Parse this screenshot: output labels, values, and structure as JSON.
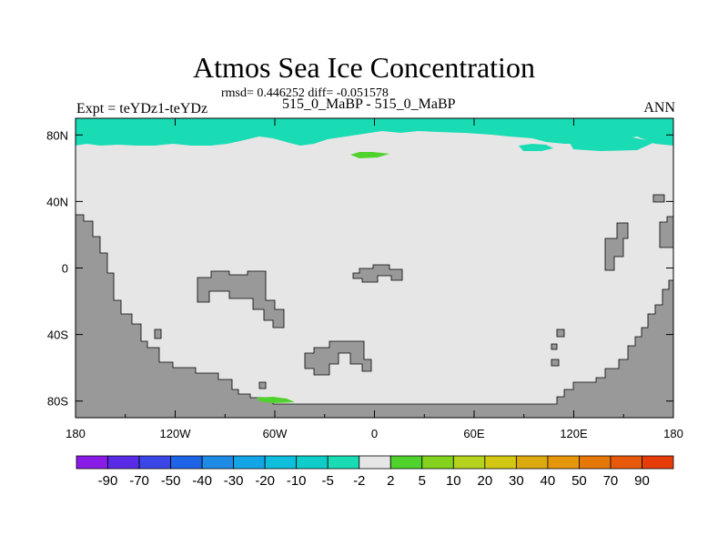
{
  "chart_data": {
    "type": "heatmap",
    "title": "Atmos Sea Ice Concentration",
    "stats": "rmsd= 0.446252 diff= -0.051578",
    "left_label": "Expt = teYDz1-teYDz",
    "center_label": "515_0_MaBP - 515_0_MaBP",
    "right_label": "ANN",
    "x_range": [
      -180,
      180
    ],
    "y_range": [
      -90,
      90
    ],
    "x_ticks": [
      {
        "value": -180,
        "label": "180"
      },
      {
        "value": -120,
        "label": "120W"
      },
      {
        "value": -60,
        "label": "60W"
      },
      {
        "value": 0,
        "label": "0"
      },
      {
        "value": 60,
        "label": "60E"
      },
      {
        "value": 120,
        "label": "120E"
      },
      {
        "value": 180,
        "label": "180"
      }
    ],
    "y_ticks": [
      {
        "value": 80,
        "label": "80N"
      },
      {
        "value": 40,
        "label": "40N"
      },
      {
        "value": 0,
        "label": "0"
      },
      {
        "value": -40,
        "label": "40S"
      },
      {
        "value": -80,
        "label": "80S"
      }
    ],
    "levels": [
      "-90",
      "-70",
      "-50",
      "-40",
      "-30",
      "-20",
      "-10",
      "-5",
      "-2",
      "2",
      "5",
      "10",
      "20",
      "30",
      "40",
      "50",
      "70",
      "90"
    ],
    "colorbar_colors": [
      "#8a1ae6",
      "#5a2be6",
      "#3c46e6",
      "#1e64e6",
      "#1e8ce6",
      "#14a5e6",
      "#0fbedc",
      "#0fcdc8",
      "#19dcb4",
      "#e6e6e6",
      "#50d22d",
      "#82d21e",
      "#b4d21e",
      "#d2c814",
      "#dcaa0f",
      "#e6960a",
      "#e6780a",
      "#e65a0a",
      "#e63c0a"
    ],
    "fills": {
      "background": "#e6e6e6",
      "land": "#999999",
      "negative": "#19dcb4",
      "positive": "#50d22d"
    }
  }
}
